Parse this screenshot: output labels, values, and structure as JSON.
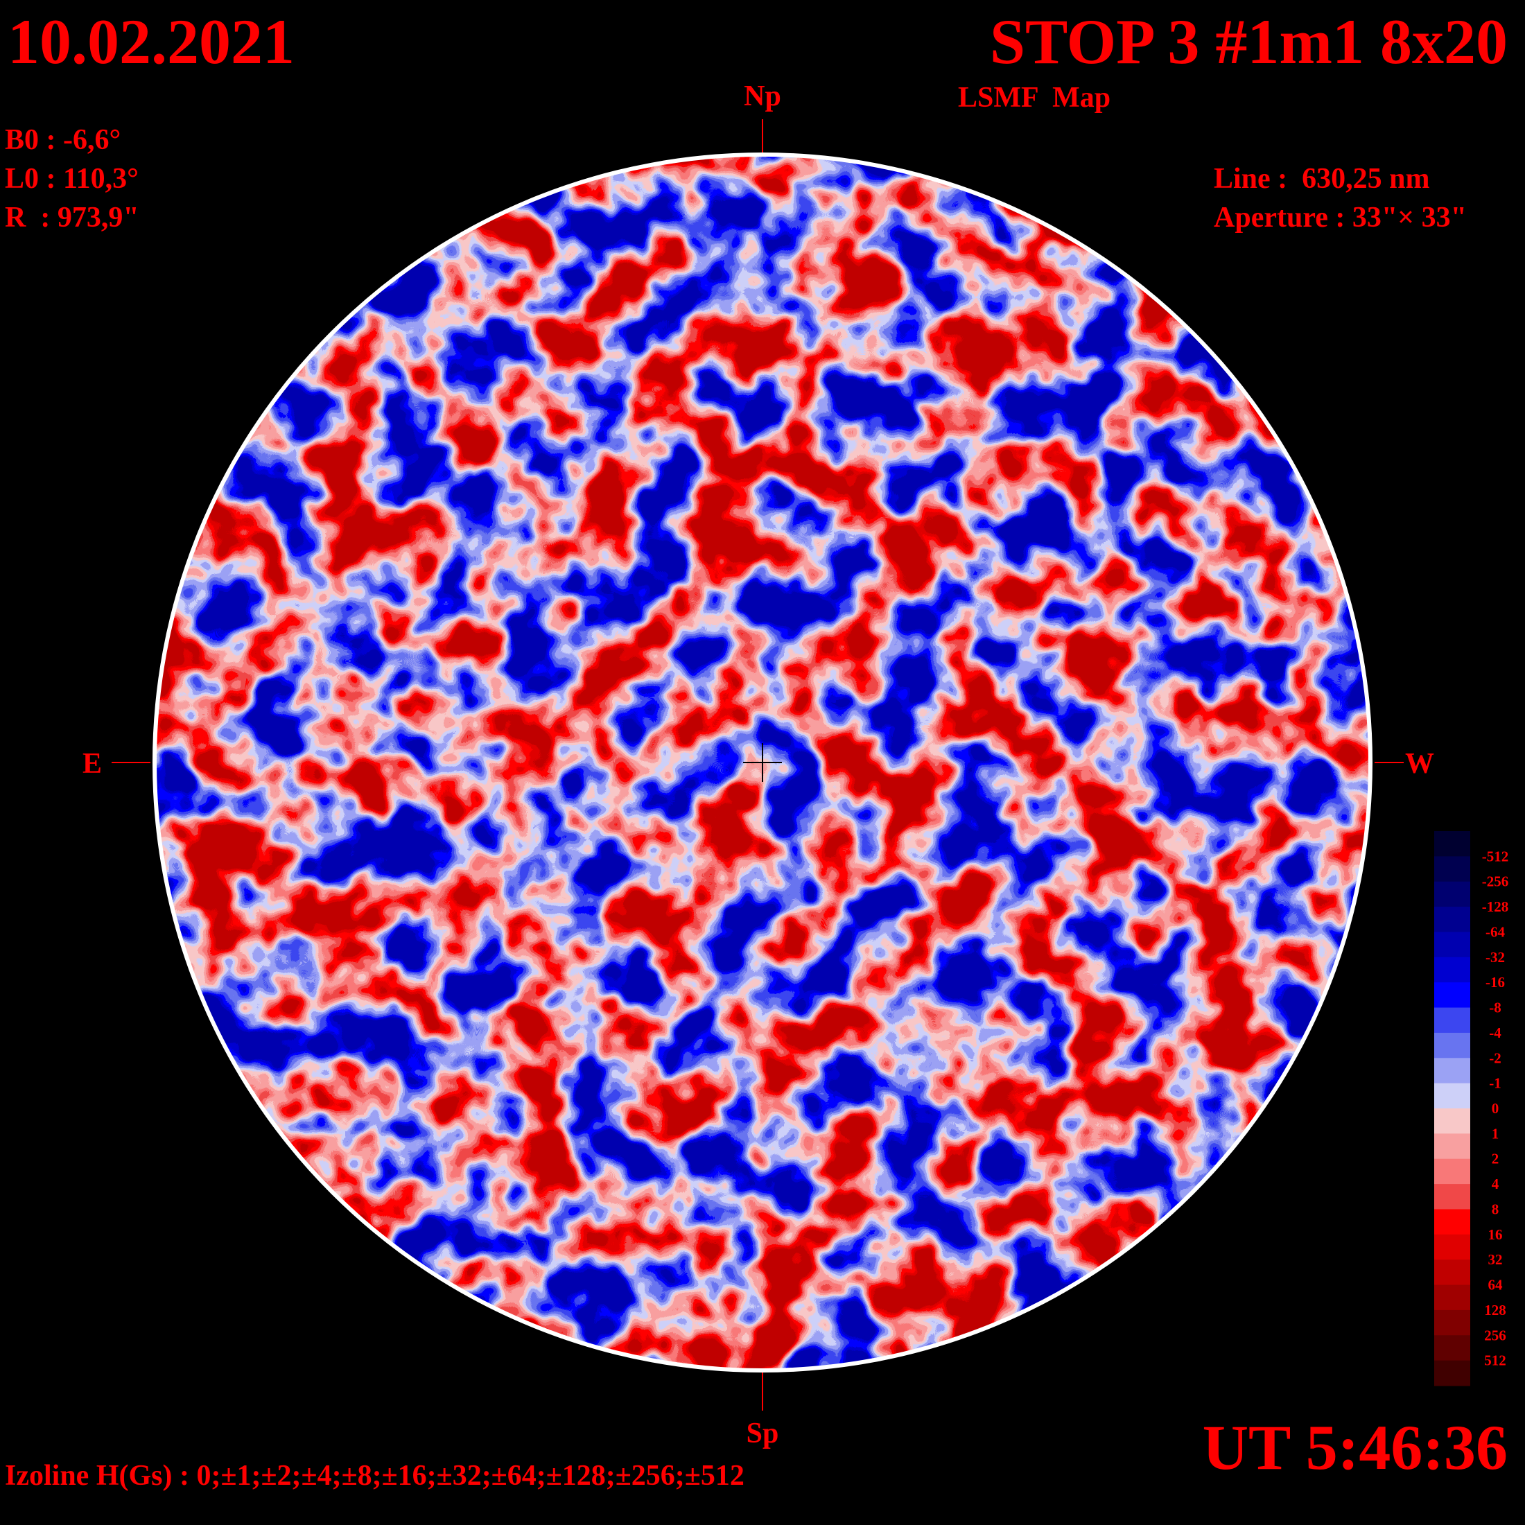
{
  "header": {
    "date": "10.02.2021",
    "title": "STOP 3 #1m1 8x20",
    "subtitle": "LSMF  Map"
  },
  "parameters": [
    "B0 : -6,6°",
    "L0 : 110,3°",
    "R  : 973,9\""
  ],
  "instrument": [
    "Line :  630,25 nm",
    "Aperture : 33\"× 33\""
  ],
  "directions": {
    "north": "Np",
    "south": "Sp",
    "east": "E",
    "west": "W"
  },
  "footer": {
    "izolines": "Izoline H(Gs) : 0;±1;±2;±4;±8;±16;±32;±64;±128;±256;±512",
    "time": "UT 5:46:36"
  },
  "colorbar": {
    "labels": [
      "-512",
      "-256",
      "-128",
      "-64",
      "-32",
      "-16",
      "-8",
      "-4",
      "-2",
      "-1",
      "0",
      "1",
      "2",
      "4",
      "8",
      "16",
      "32",
      "64",
      "128",
      "256",
      "512"
    ],
    "colors": [
      "#000030",
      "#000050",
      "#000070",
      "#000090",
      "#0000b0",
      "#0000d0",
      "#0000ff",
      "#3c46f0",
      "#6874f0",
      "#9ba2f4",
      "#cdd0f8",
      "#f8c8c8",
      "#f8a0a0",
      "#f87878",
      "#f04848",
      "#ff0000",
      "#e00000",
      "#c00000",
      "#a00000",
      "#800000",
      "#600000",
      "#400000"
    ]
  }
}
